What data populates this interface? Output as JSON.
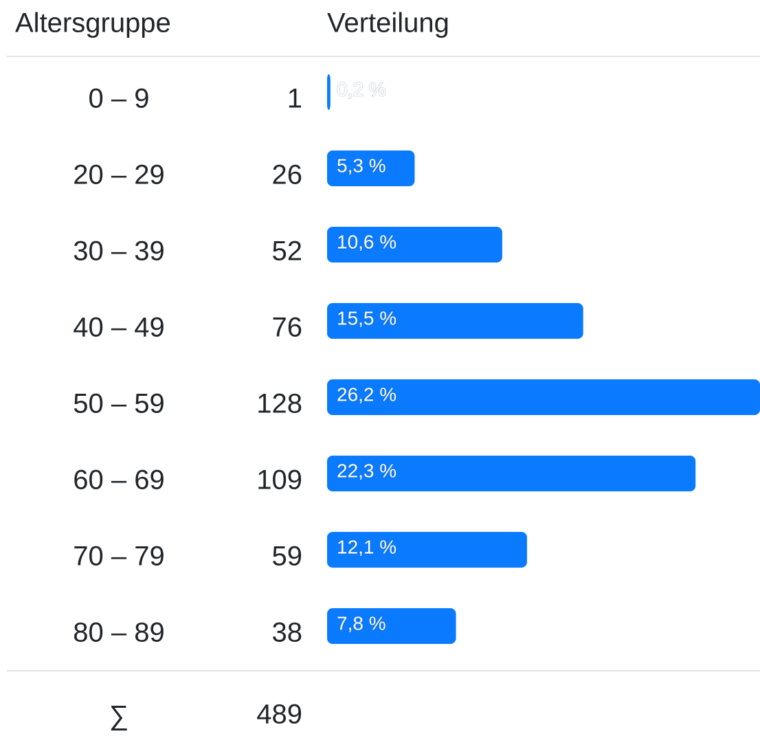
{
  "table": {
    "headers": [
      "Altersgruppe",
      "Verteilung"
    ],
    "bar_color": "#0a7aff",
    "rows": [
      {
        "group": "0 – 9",
        "count": 1,
        "share": 0.2,
        "share_label": "0,2 %"
      },
      {
        "group": "20 – 29",
        "count": 26,
        "share": 5.3,
        "share_label": "5,3 %"
      },
      {
        "group": "30 – 39",
        "count": 52,
        "share": 10.6,
        "share_label": "10,6 %"
      },
      {
        "group": "40 – 49",
        "count": 76,
        "share": 15.5,
        "share_label": "15,5 %"
      },
      {
        "group": "50 – 59",
        "count": 128,
        "share": 26.2,
        "share_label": "26,2 %"
      },
      {
        "group": "60 – 69",
        "count": 109,
        "share": 22.3,
        "share_label": "22,3 %"
      },
      {
        "group": "70 – 79",
        "count": 59,
        "share": 12.1,
        "share_label": "12,1 %"
      },
      {
        "group": "80 – 89",
        "count": 38,
        "share": 7.8,
        "share_label": "7,8 %"
      }
    ],
    "total": {
      "symbol": "∑",
      "count": 489
    }
  }
}
